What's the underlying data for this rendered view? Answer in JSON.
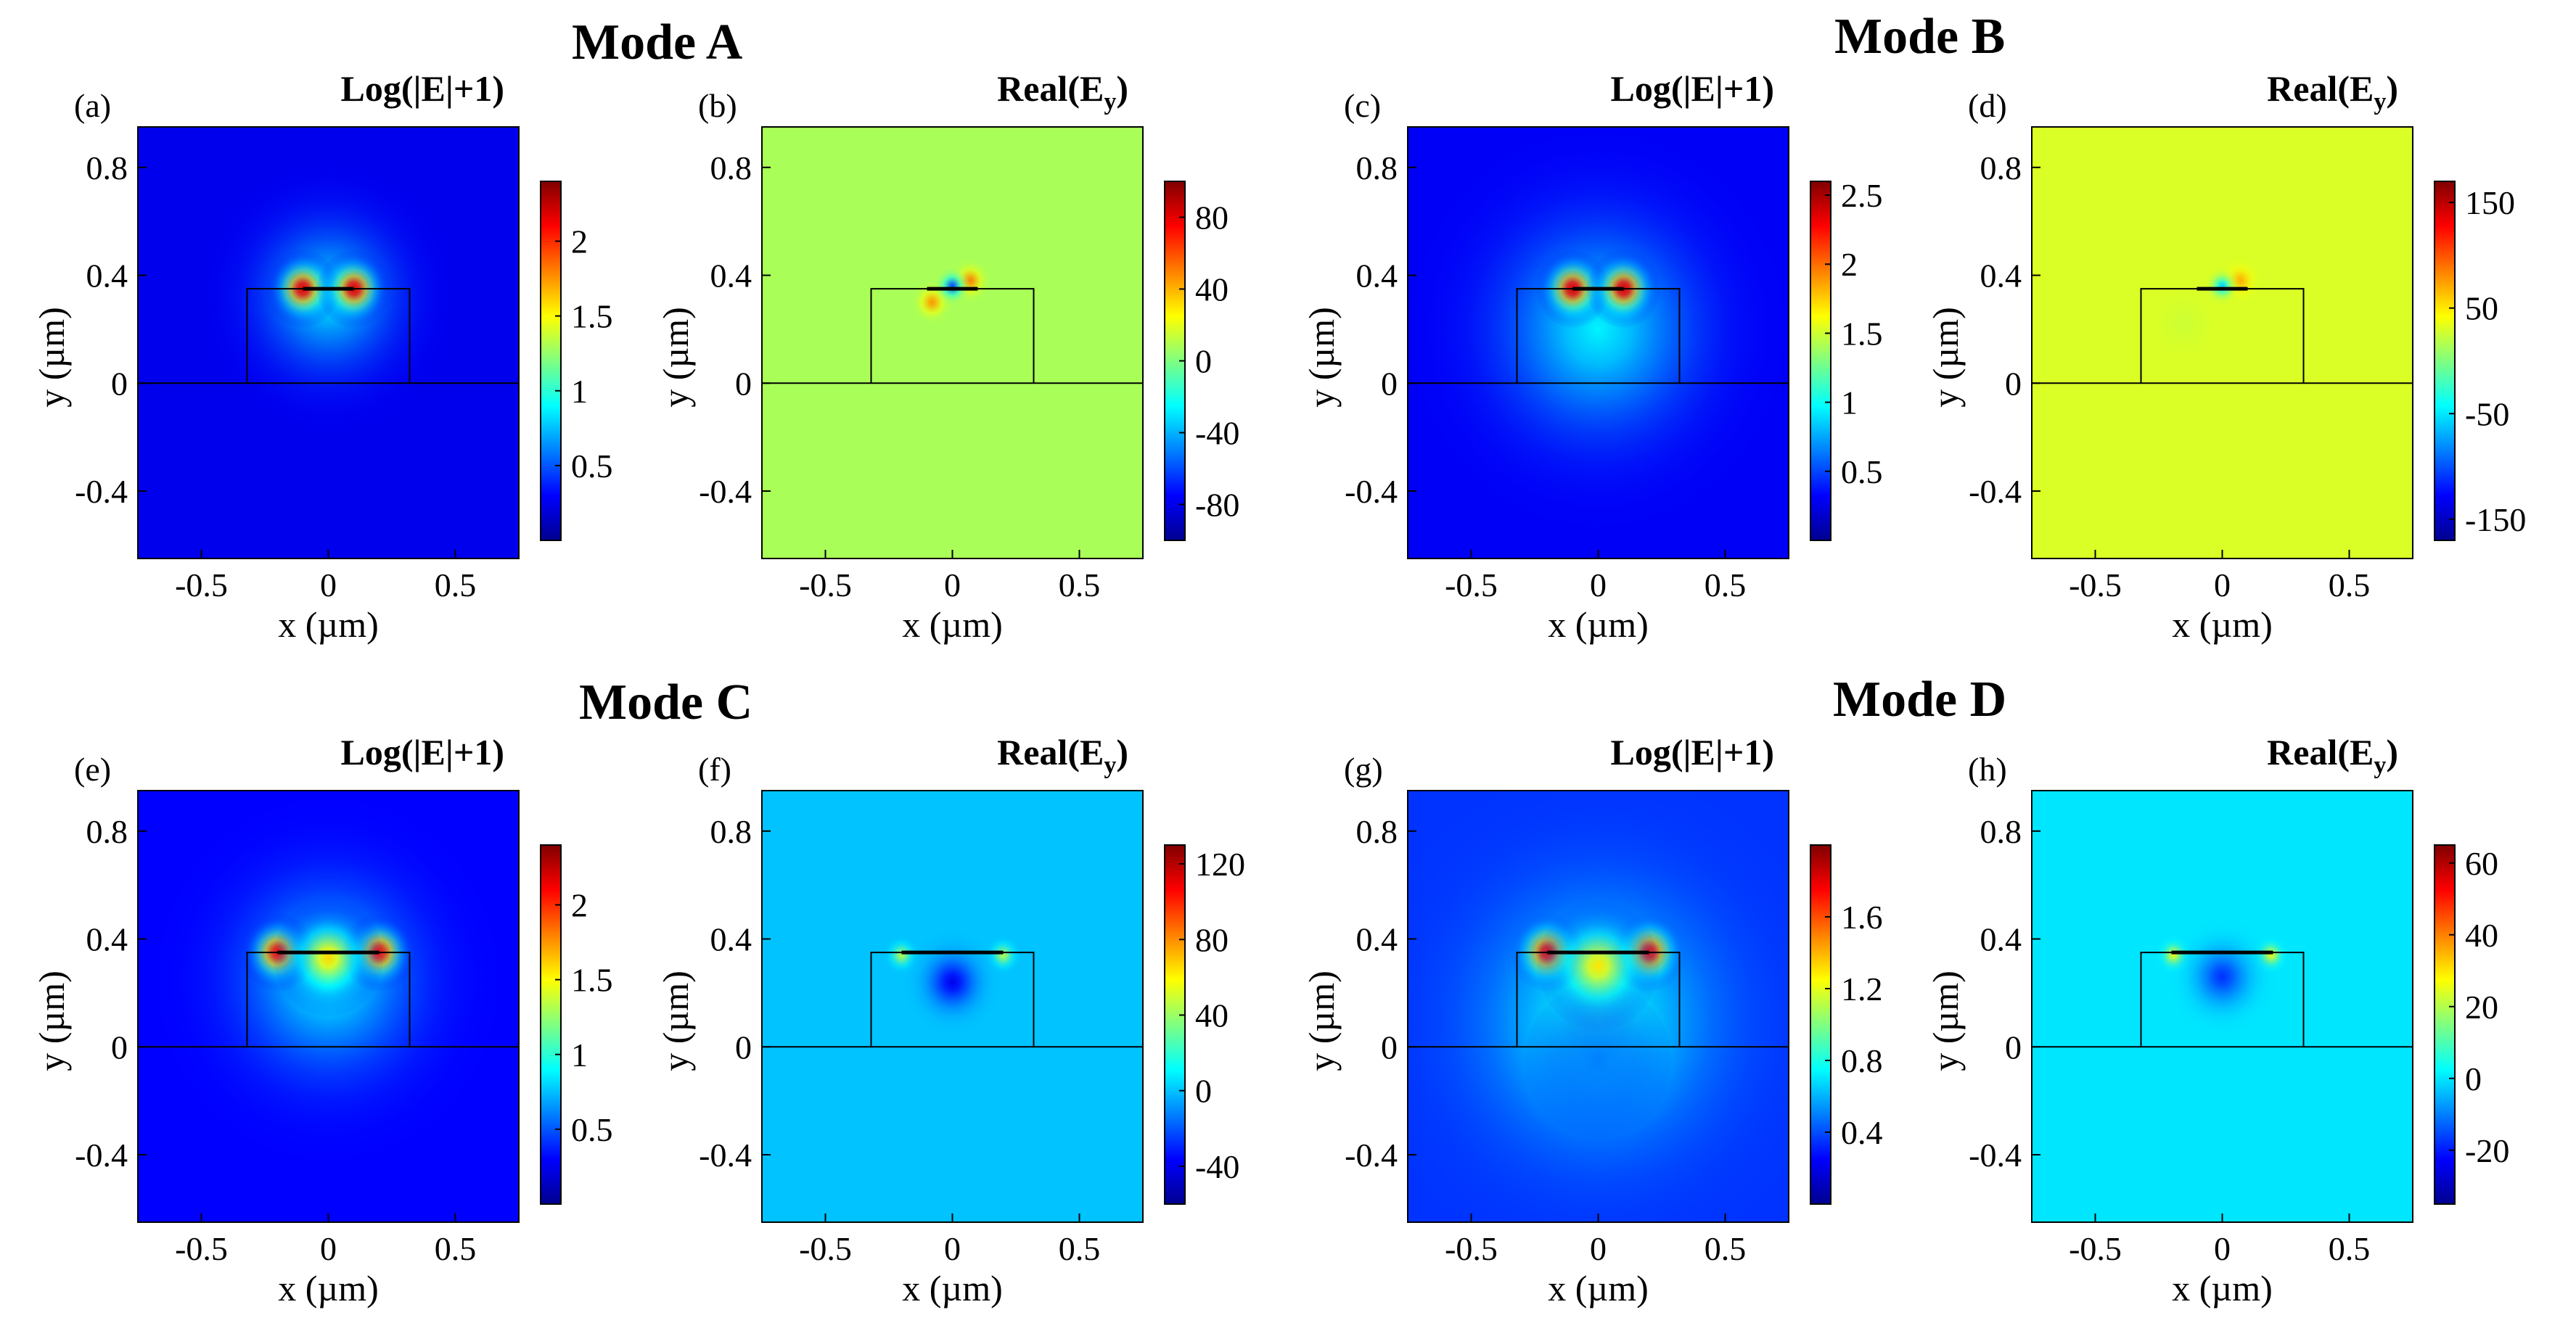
{
  "figure": {
    "mode_titles": [
      "Mode A",
      "Mode B",
      "Mode C",
      "Mode D"
    ]
  },
  "colors": {
    "jet": [
      "#00008f",
      "#0000ff",
      "#0080ff",
      "#00ffff",
      "#80ff80",
      "#ffff00",
      "#ff8000",
      "#ff0000",
      "#800000"
    ],
    "frame": "#000000"
  },
  "chart_data": [
    {
      "id": "a",
      "type": "heatmap",
      "panel_label": "(a)",
      "title_main": "Log(|E|+1)",
      "title_sub": "",
      "quantity": "log",
      "mode": "Mode A",
      "xlabel": "x (µm)",
      "ylabel": "y (µm)",
      "xlim": [
        -0.75,
        0.75
      ],
      "ylim": [
        -0.65,
        0.95
      ],
      "xticks": [
        -0.5,
        0,
        0.5
      ],
      "xtick_labels": [
        "-0.5",
        "0",
        "0.5"
      ],
      "yticks": [
        -0.4,
        0,
        0.4,
        0.8
      ],
      "ytick_labels": [
        "-0.4",
        "0",
        "0.4",
        "0.8"
      ],
      "colorbar": {
        "min": 0,
        "max": 2.4,
        "ticks": [
          0.5,
          1,
          1.5,
          2
        ],
        "tick_labels": [
          "0.5",
          "1",
          "1.5",
          "2"
        ]
      },
      "structure": {
        "ridge_x": [
          -0.32,
          0.32
        ],
        "ridge_top": 0.35,
        "strip_x": [
          -0.1,
          0.1
        ],
        "substrate_top": 0
      },
      "field": {
        "background": 0.25,
        "hotspots": [
          {
            "x": -0.1,
            "y": 0.35,
            "peak": 2.2,
            "sigma": 0.06
          },
          {
            "x": 0.1,
            "y": 0.35,
            "peak": 2.2,
            "sigma": 0.06
          }
        ],
        "lobes": [
          {
            "x": 0,
            "y": 0.32,
            "peak": 0.85,
            "sigma": 0.22
          }
        ]
      }
    },
    {
      "id": "b",
      "type": "heatmap",
      "panel_label": "(b)",
      "title_main": "Real(E",
      "title_sub": "y",
      "quantity": "real",
      "mode": "Mode A",
      "xlabel": "x (µm)",
      "ylabel": "y (µm)",
      "xlim": [
        -0.75,
        0.75
      ],
      "ylim": [
        -0.65,
        0.95
      ],
      "xticks": [
        -0.5,
        0,
        0.5
      ],
      "xtick_labels": [
        "-0.5",
        "0",
        "0.5"
      ],
      "yticks": [
        -0.4,
        0,
        0.4,
        0.8
      ],
      "ytick_labels": [
        "-0.4",
        "0",
        "0.4",
        "0.8"
      ],
      "colorbar": {
        "min": -100,
        "max": 100,
        "ticks": [
          -80,
          -40,
          0,
          40,
          80
        ],
        "tick_labels": [
          "-80",
          "-40",
          "0",
          "40",
          "80"
        ]
      },
      "structure": {
        "ridge_x": [
          -0.32,
          0.32
        ],
        "ridge_top": 0.35,
        "strip_x": [
          -0.1,
          0.1
        ],
        "substrate_top": 0
      },
      "field": {
        "background": 8,
        "hotspots": [
          {
            "x": -0.08,
            "y": 0.3,
            "peak": 45,
            "sigma": 0.035
          },
          {
            "x": 0.07,
            "y": 0.38,
            "peak": 50,
            "sigma": 0.035
          },
          {
            "x": 0.0,
            "y": 0.36,
            "peak": -60,
            "sigma": 0.03
          }
        ],
        "lobes": []
      }
    },
    {
      "id": "c",
      "type": "heatmap",
      "panel_label": "(c)",
      "title_main": "Log(|E|+1)",
      "title_sub": "",
      "quantity": "log",
      "mode": "Mode B",
      "xlabel": "x (µm)",
      "ylabel": "y (µm)",
      "xlim": [
        -0.75,
        0.75
      ],
      "ylim": [
        -0.65,
        0.95
      ],
      "xticks": [
        -0.5,
        0,
        0.5
      ],
      "xtick_labels": [
        "-0.5",
        "0",
        "0.5"
      ],
      "yticks": [
        -0.4,
        0,
        0.4,
        0.8
      ],
      "ytick_labels": [
        "-0.4",
        "0",
        "0.4",
        "0.8"
      ],
      "colorbar": {
        "min": 0,
        "max": 2.6,
        "ticks": [
          0.5,
          1,
          1.5,
          2,
          2.5
        ],
        "tick_labels": [
          "0.5",
          "1",
          "1.5",
          "2",
          "2.5"
        ]
      },
      "structure": {
        "ridge_x": [
          -0.32,
          0.32
        ],
        "ridge_top": 0.35,
        "strip_x": [
          -0.1,
          0.1
        ],
        "substrate_top": 0
      },
      "field": {
        "background": 0.3,
        "hotspots": [
          {
            "x": -0.1,
            "y": 0.35,
            "peak": 2.4,
            "sigma": 0.06
          },
          {
            "x": 0.1,
            "y": 0.35,
            "peak": 2.4,
            "sigma": 0.06
          }
        ],
        "lobes": [
          {
            "x": 0,
            "y": 0.2,
            "peak": 0.95,
            "sigma": 0.32
          }
        ]
      }
    },
    {
      "id": "d",
      "type": "heatmap",
      "panel_label": "(d)",
      "title_main": "Real(E",
      "title_sub": "y",
      "quantity": "real",
      "mode": "Mode B",
      "xlabel": "x (µm)",
      "ylabel": "y (µm)",
      "xlim": [
        -0.75,
        0.75
      ],
      "ylim": [
        -0.65,
        0.95
      ],
      "xticks": [
        -0.5,
        0,
        0.5
      ],
      "xtick_labels": [
        "-0.5",
        "0",
        "0.5"
      ],
      "yticks": [
        -0.4,
        0,
        0.4,
        0.8
      ],
      "ytick_labels": [
        "-0.4",
        "0",
        "0.4",
        "0.8"
      ],
      "colorbar": {
        "min": -170,
        "max": 170,
        "ticks": [
          -150,
          -50,
          50,
          150
        ],
        "tick_labels": [
          "-150",
          "-50",
          "50",
          "150"
        ]
      },
      "structure": {
        "ridge_x": [
          -0.32,
          0.32
        ],
        "ridge_top": 0.35,
        "strip_x": [
          -0.1,
          0.1
        ],
        "substrate_top": 0
      },
      "field": {
        "background": 30,
        "hotspots": [
          {
            "x": 0.07,
            "y": 0.38,
            "peak": 70,
            "sigma": 0.035
          },
          {
            "x": -0.15,
            "y": 0.22,
            "peak": 25,
            "sigma": 0.07
          },
          {
            "x": 0.0,
            "y": 0.36,
            "peak": -60,
            "sigma": 0.03
          }
        ],
        "lobes": []
      }
    },
    {
      "id": "e",
      "type": "heatmap",
      "panel_label": "(e)",
      "title_main": "Log(|E|+1)",
      "title_sub": "",
      "quantity": "log",
      "mode": "Mode C",
      "xlabel": "x (µm)",
      "ylabel": "y (µm)",
      "xlim": [
        -0.75,
        0.75
      ],
      "ylim": [
        -0.65,
        0.95
      ],
      "xticks": [
        -0.5,
        0,
        0.5
      ],
      "xtick_labels": [
        "-0.5",
        "0",
        "0.5"
      ],
      "yticks": [
        -0.4,
        0,
        0.4,
        0.8
      ],
      "ytick_labels": [
        "-0.4",
        "0",
        "0.4",
        "0.8"
      ],
      "colorbar": {
        "min": 0,
        "max": 2.4,
        "ticks": [
          0.5,
          1,
          1.5,
          2
        ],
        "tick_labels": [
          "0.5",
          "1",
          "1.5",
          "2"
        ]
      },
      "structure": {
        "ridge_x": [
          -0.32,
          0.32
        ],
        "ridge_top": 0.35,
        "strip_x": [
          -0.2,
          0.2
        ],
        "substrate_top": 0
      },
      "field": {
        "background": 0.3,
        "hotspots": [
          {
            "x": -0.2,
            "y": 0.35,
            "peak": 2.1,
            "sigma": 0.06
          },
          {
            "x": 0.2,
            "y": 0.35,
            "peak": 2.1,
            "sigma": 0.06
          },
          {
            "x": 0,
            "y": 0.33,
            "peak": 1.6,
            "sigma": 0.09
          }
        ],
        "lobes": [
          {
            "x": 0,
            "y": 0.25,
            "peak": 0.9,
            "sigma": 0.28
          }
        ]
      }
    },
    {
      "id": "f",
      "type": "heatmap",
      "panel_label": "(f)",
      "title_main": "Real(E",
      "title_sub": "y",
      "quantity": "real",
      "mode": "Mode C",
      "xlabel": "x (µm)",
      "ylabel": "y (µm)",
      "xlim": [
        -0.75,
        0.75
      ],
      "ylim": [
        -0.65,
        0.95
      ],
      "xticks": [
        -0.5,
        0,
        0.5
      ],
      "xtick_labels": [
        "-0.5",
        "0",
        "0.5"
      ],
      "yticks": [
        -0.4,
        0,
        0.4,
        0.8
      ],
      "ytick_labels": [
        "-0.4",
        "0",
        "0.4",
        "0.8"
      ],
      "colorbar": {
        "min": -60,
        "max": 130,
        "ticks": [
          -40,
          0,
          40,
          80,
          120
        ],
        "tick_labels": [
          "-40",
          "0",
          "40",
          "80",
          "120"
        ]
      },
      "structure": {
        "ridge_x": [
          -0.32,
          0.32
        ],
        "ridge_top": 0.35,
        "strip_x": [
          -0.2,
          0.2
        ],
        "substrate_top": 0
      },
      "field": {
        "background": 0,
        "hotspots": [
          {
            "x": -0.2,
            "y": 0.34,
            "peak": 45,
            "sigma": 0.03
          },
          {
            "x": 0.2,
            "y": 0.34,
            "peak": 45,
            "sigma": 0.03
          },
          {
            "x": 0,
            "y": 0.24,
            "peak": -40,
            "sigma": 0.08
          }
        ],
        "lobes": []
      }
    },
    {
      "id": "g",
      "type": "heatmap",
      "panel_label": "(g)",
      "title_main": "Log(|E|+1)",
      "title_sub": "",
      "quantity": "log",
      "mode": "Mode D",
      "xlabel": "x (µm)",
      "ylabel": "y (µm)",
      "xlim": [
        -0.75,
        0.75
      ],
      "ylim": [
        -0.65,
        0.95
      ],
      "xticks": [
        -0.5,
        0,
        0.5
      ],
      "xtick_labels": [
        "-0.5",
        "0",
        "0.5"
      ],
      "yticks": [
        -0.4,
        0,
        0.4,
        0.8
      ],
      "ytick_labels": [
        "-0.4",
        "0",
        "0.4",
        "0.8"
      ],
      "colorbar": {
        "min": 0,
        "max": 2.0,
        "ticks": [
          0.4,
          0.8,
          1.2,
          1.6
        ],
        "tick_labels": [
          "0.4",
          "0.8",
          "1.2",
          "1.6"
        ]
      },
      "structure": {
        "ridge_x": [
          -0.32,
          0.32
        ],
        "ridge_top": 0.35,
        "strip_x": [
          -0.2,
          0.2
        ],
        "substrate_top": 0
      },
      "field": {
        "background": 0.35,
        "hotspots": [
          {
            "x": -0.2,
            "y": 0.35,
            "peak": 1.8,
            "sigma": 0.06
          },
          {
            "x": 0.2,
            "y": 0.35,
            "peak": 1.8,
            "sigma": 0.06
          },
          {
            "x": 0,
            "y": 0.3,
            "peak": 1.3,
            "sigma": 0.1
          }
        ],
        "lobes": [
          {
            "x": 0,
            "y": 0.1,
            "peak": 0.8,
            "sigma": 0.38
          },
          {
            "x": 0,
            "y": -0.05,
            "peak": 0.5,
            "sigma": 0.12
          }
        ]
      }
    },
    {
      "id": "h",
      "type": "heatmap",
      "panel_label": "(h)",
      "title_main": "Real(E",
      "title_sub": "y",
      "quantity": "real",
      "mode": "Mode D",
      "xlabel": "x (µm)",
      "ylabel": "y (µm)",
      "xlim": [
        -0.75,
        0.75
      ],
      "ylim": [
        -0.65,
        0.95
      ],
      "xticks": [
        -0.5,
        0,
        0.5
      ],
      "xtick_labels": [
        "-0.5",
        "0",
        "0.5"
      ],
      "yticks": [
        -0.4,
        0,
        0.4,
        0.8
      ],
      "ytick_labels": [
        "-0.4",
        "0",
        "0.4",
        "0.8"
      ],
      "colorbar": {
        "min": -35,
        "max": 65,
        "ticks": [
          -20,
          0,
          20,
          40,
          60
        ],
        "tick_labels": [
          "-20",
          "0",
          "20",
          "40",
          "60"
        ]
      },
      "structure": {
        "ridge_x": [
          -0.32,
          0.32
        ],
        "ridge_top": 0.35,
        "strip_x": [
          -0.2,
          0.2
        ],
        "substrate_top": 0
      },
      "field": {
        "background": 0,
        "hotspots": [
          {
            "x": -0.19,
            "y": 0.34,
            "peak": 28,
            "sigma": 0.03
          },
          {
            "x": 0.19,
            "y": 0.34,
            "peak": 28,
            "sigma": 0.03
          },
          {
            "x": 0,
            "y": 0.26,
            "peak": -18,
            "sigma": 0.09
          }
        ],
        "lobes": []
      }
    }
  ]
}
